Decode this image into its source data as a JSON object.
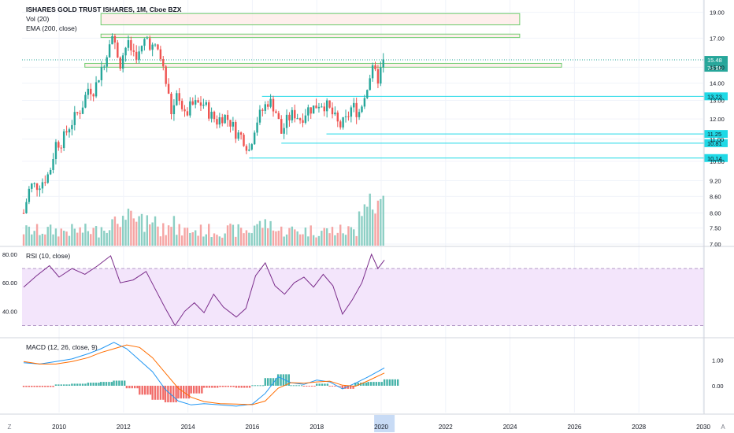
{
  "header": {
    "title": "ISHARES GOLD TRUST ISHARES, 1M, Cboe BZX",
    "vol_label": "Vol (20)",
    "ema_label": "EMA (200, close)"
  },
  "rsi_label": "RSI (10, close)",
  "macd_label": "MACD (12, 26, close, 9)",
  "footer": {
    "left_icon_text": "Z",
    "right_icon_text": "A"
  },
  "colors": {
    "up": "#26a69a",
    "down": "#ef5350",
    "vol_up": "#8ccfc4",
    "vol_down": "#f5a5a4",
    "zone_fill": "#fde8e4",
    "zone_stroke": "#6ccc6c",
    "hline": "#1fd9e6",
    "price_dot": "#26a69a",
    "rsi_line": "#7b2d8b",
    "rsi_band": "#f3e5fb",
    "macd_line": "#2196f3",
    "signal_line": "#ff6d00",
    "grid": "#f0f3fa",
    "axis_text": "#131722",
    "highlight": "#c8dbf5"
  },
  "chart_data": [
    {
      "type": "candlestick",
      "title": "ISHARES GOLD TRUST ISHARES, 1M, Cboe BZX",
      "x_ticks": [
        "2010",
        "2012",
        "2014",
        "2016",
        "2018",
        "2020",
        "2022",
        "2024",
        "2026",
        "2028",
        "2030"
      ],
      "x_range": [
        2008.85,
        2030.0
      ],
      "y_scale": "log",
      "y_ticks": [
        7.0,
        7.5,
        8.0,
        8.6,
        9.2,
        10.0,
        11.0,
        12.0,
        13.0,
        14.0,
        15.0,
        17.0,
        19.0
      ],
      "ylim": [
        7.0,
        19.5
      ],
      "last_price": 15.48,
      "last_price_label": "15.48",
      "countdown_label": "7d 9h",
      "price_path": [
        [
          2008.9,
          8.0
        ],
        [
          2009.1,
          9.0
        ],
        [
          2009.3,
          9.0
        ],
        [
          2009.5,
          9.2
        ],
        [
          2009.7,
          9.5
        ],
        [
          2009.9,
          10.8
        ],
        [
          2010.1,
          10.9
        ],
        [
          2010.3,
          11.6
        ],
        [
          2010.5,
          12.1
        ],
        [
          2010.7,
          12.6
        ],
        [
          2010.9,
          13.7
        ],
        [
          2011.1,
          13.6
        ],
        [
          2011.3,
          14.9
        ],
        [
          2011.5,
          16.0
        ],
        [
          2011.6,
          17.6
        ],
        [
          2011.75,
          16.3
        ],
        [
          2011.9,
          15.3
        ],
        [
          2012.1,
          16.6
        ],
        [
          2012.3,
          16.0
        ],
        [
          2012.5,
          15.8
        ],
        [
          2012.7,
          17.1
        ],
        [
          2012.9,
          16.3
        ],
        [
          2013.1,
          16.1
        ],
        [
          2013.3,
          14.2
        ],
        [
          2013.5,
          12.2
        ],
        [
          2013.7,
          13.5
        ],
        [
          2013.9,
          12.1
        ],
        [
          2014.1,
          12.7
        ],
        [
          2014.3,
          12.8
        ],
        [
          2014.5,
          12.8
        ],
        [
          2014.7,
          12.2
        ],
        [
          2014.9,
          11.9
        ],
        [
          2015.1,
          12.2
        ],
        [
          2015.3,
          11.9
        ],
        [
          2015.5,
          11.3
        ],
        [
          2015.7,
          11.1
        ],
        [
          2015.9,
          10.5
        ],
        [
          2016.1,
          11.8
        ],
        [
          2016.3,
          12.4
        ],
        [
          2016.5,
          13.0
        ],
        [
          2016.7,
          12.6
        ],
        [
          2016.9,
          11.3
        ],
        [
          2017.1,
          12.0
        ],
        [
          2017.3,
          12.3
        ],
        [
          2017.5,
          12.0
        ],
        [
          2017.7,
          12.5
        ],
        [
          2017.9,
          12.6
        ],
        [
          2018.1,
          12.9
        ],
        [
          2018.3,
          12.7
        ],
        [
          2018.5,
          12.2
        ],
        [
          2018.7,
          11.6
        ],
        [
          2018.9,
          11.9
        ],
        [
          2019.1,
          12.7
        ],
        [
          2019.3,
          12.3
        ],
        [
          2019.5,
          13.4
        ],
        [
          2019.7,
          14.8
        ],
        [
          2019.9,
          14.3
        ],
        [
          2020.1,
          15.48
        ]
      ],
      "zones": [
        {
          "from": 2011.3,
          "to": 2024.3,
          "low": 18.0,
          "high": 18.9
        },
        {
          "from": 2011.3,
          "to": 2024.3,
          "low": 17.05,
          "high": 17.3
        },
        {
          "from": 2010.8,
          "to": 2025.6,
          "low": 15.0,
          "high": 15.25
        }
      ],
      "levels": [
        {
          "value": 13.23,
          "label": "13.23",
          "from": 2016.3
        },
        {
          "value": 11.25,
          "label": "11.25",
          "from": 2018.3
        },
        {
          "value": 10.81,
          "label": "10.81",
          "from": 2016.9
        },
        {
          "value": 10.14,
          "label": "10.14",
          "from": 2015.9
        }
      ]
    },
    {
      "type": "line",
      "title": "RSI (10, close)",
      "y_ticks": [
        "80.00",
        "60.00",
        "40.00"
      ],
      "ylim": [
        22,
        85
      ],
      "band": [
        30,
        70
      ],
      "x": [
        2008.9,
        2009.3,
        2009.7,
        2010.0,
        2010.4,
        2010.8,
        2011.2,
        2011.6,
        2011.9,
        2012.3,
        2012.7,
        2013.0,
        2013.3,
        2013.6,
        2013.9,
        2014.2,
        2014.5,
        2014.8,
        2015.1,
        2015.5,
        2015.8,
        2016.1,
        2016.4,
        2016.7,
        2017.0,
        2017.3,
        2017.6,
        2017.9,
        2018.2,
        2018.5,
        2018.8,
        2019.1,
        2019.4,
        2019.7,
        2019.9,
        2020.1
      ],
      "values": [
        57,
        65,
        72,
        64,
        70,
        66,
        72,
        79,
        60,
        62,
        68,
        55,
        42,
        30,
        40,
        46,
        39,
        52,
        43,
        36,
        42,
        65,
        74,
        58,
        52,
        60,
        64,
        57,
        66,
        58,
        38,
        48,
        60,
        80,
        70,
        76
      ]
    },
    {
      "type": "line",
      "title": "MACD (12, 26, close, 9)",
      "y_ticks": [
        "1.00",
        "0.00"
      ],
      "ylim": [
        -1.05,
        1.85
      ],
      "x": [
        2008.9,
        2009.4,
        2009.9,
        2010.4,
        2010.9,
        2011.3,
        2011.7,
        2012.1,
        2012.5,
        2012.9,
        2013.3,
        2013.7,
        2014.1,
        2014.5,
        2015.0,
        2015.5,
        2016.0,
        2016.4,
        2016.8,
        2017.2,
        2017.6,
        2018.0,
        2018.4,
        2018.8,
        2019.2,
        2019.6,
        2020.1
      ],
      "series": [
        {
          "name": "",
          "values": [
            0.9,
            0.85,
            0.95,
            1.05,
            1.25,
            1.45,
            1.7,
            1.45,
            1.0,
            0.55,
            -0.15,
            -0.6,
            -0.75,
            -0.7,
            -0.75,
            -0.8,
            -0.72,
            -0.3,
            0.35,
            0.12,
            0.05,
            0.22,
            0.15,
            -0.12,
            0.1,
            0.35,
            0.7
          ]
        },
        {
          "name": "",
          "values": [
            0.95,
            0.85,
            0.85,
            0.95,
            1.1,
            1.3,
            1.45,
            1.6,
            1.5,
            1.1,
            0.5,
            -0.1,
            -0.45,
            -0.62,
            -0.7,
            -0.72,
            -0.74,
            -0.6,
            -0.1,
            0.12,
            0.1,
            0.15,
            0.18,
            0.02,
            -0.02,
            0.2,
            0.5
          ]
        }
      ],
      "histogram": [
        -0.05,
        -0.05,
        0.05,
        0.08,
        0.12,
        0.15,
        0.2,
        -0.1,
        -0.35,
        -0.55,
        -0.65,
        -0.5,
        -0.3,
        -0.08,
        -0.05,
        -0.08,
        0.02,
        0.3,
        0.45,
        0.02,
        -0.03,
        0.08,
        -0.03,
        -0.12,
        0.12,
        0.15,
        0.25
      ],
      "y_axis_side": "right"
    }
  ]
}
